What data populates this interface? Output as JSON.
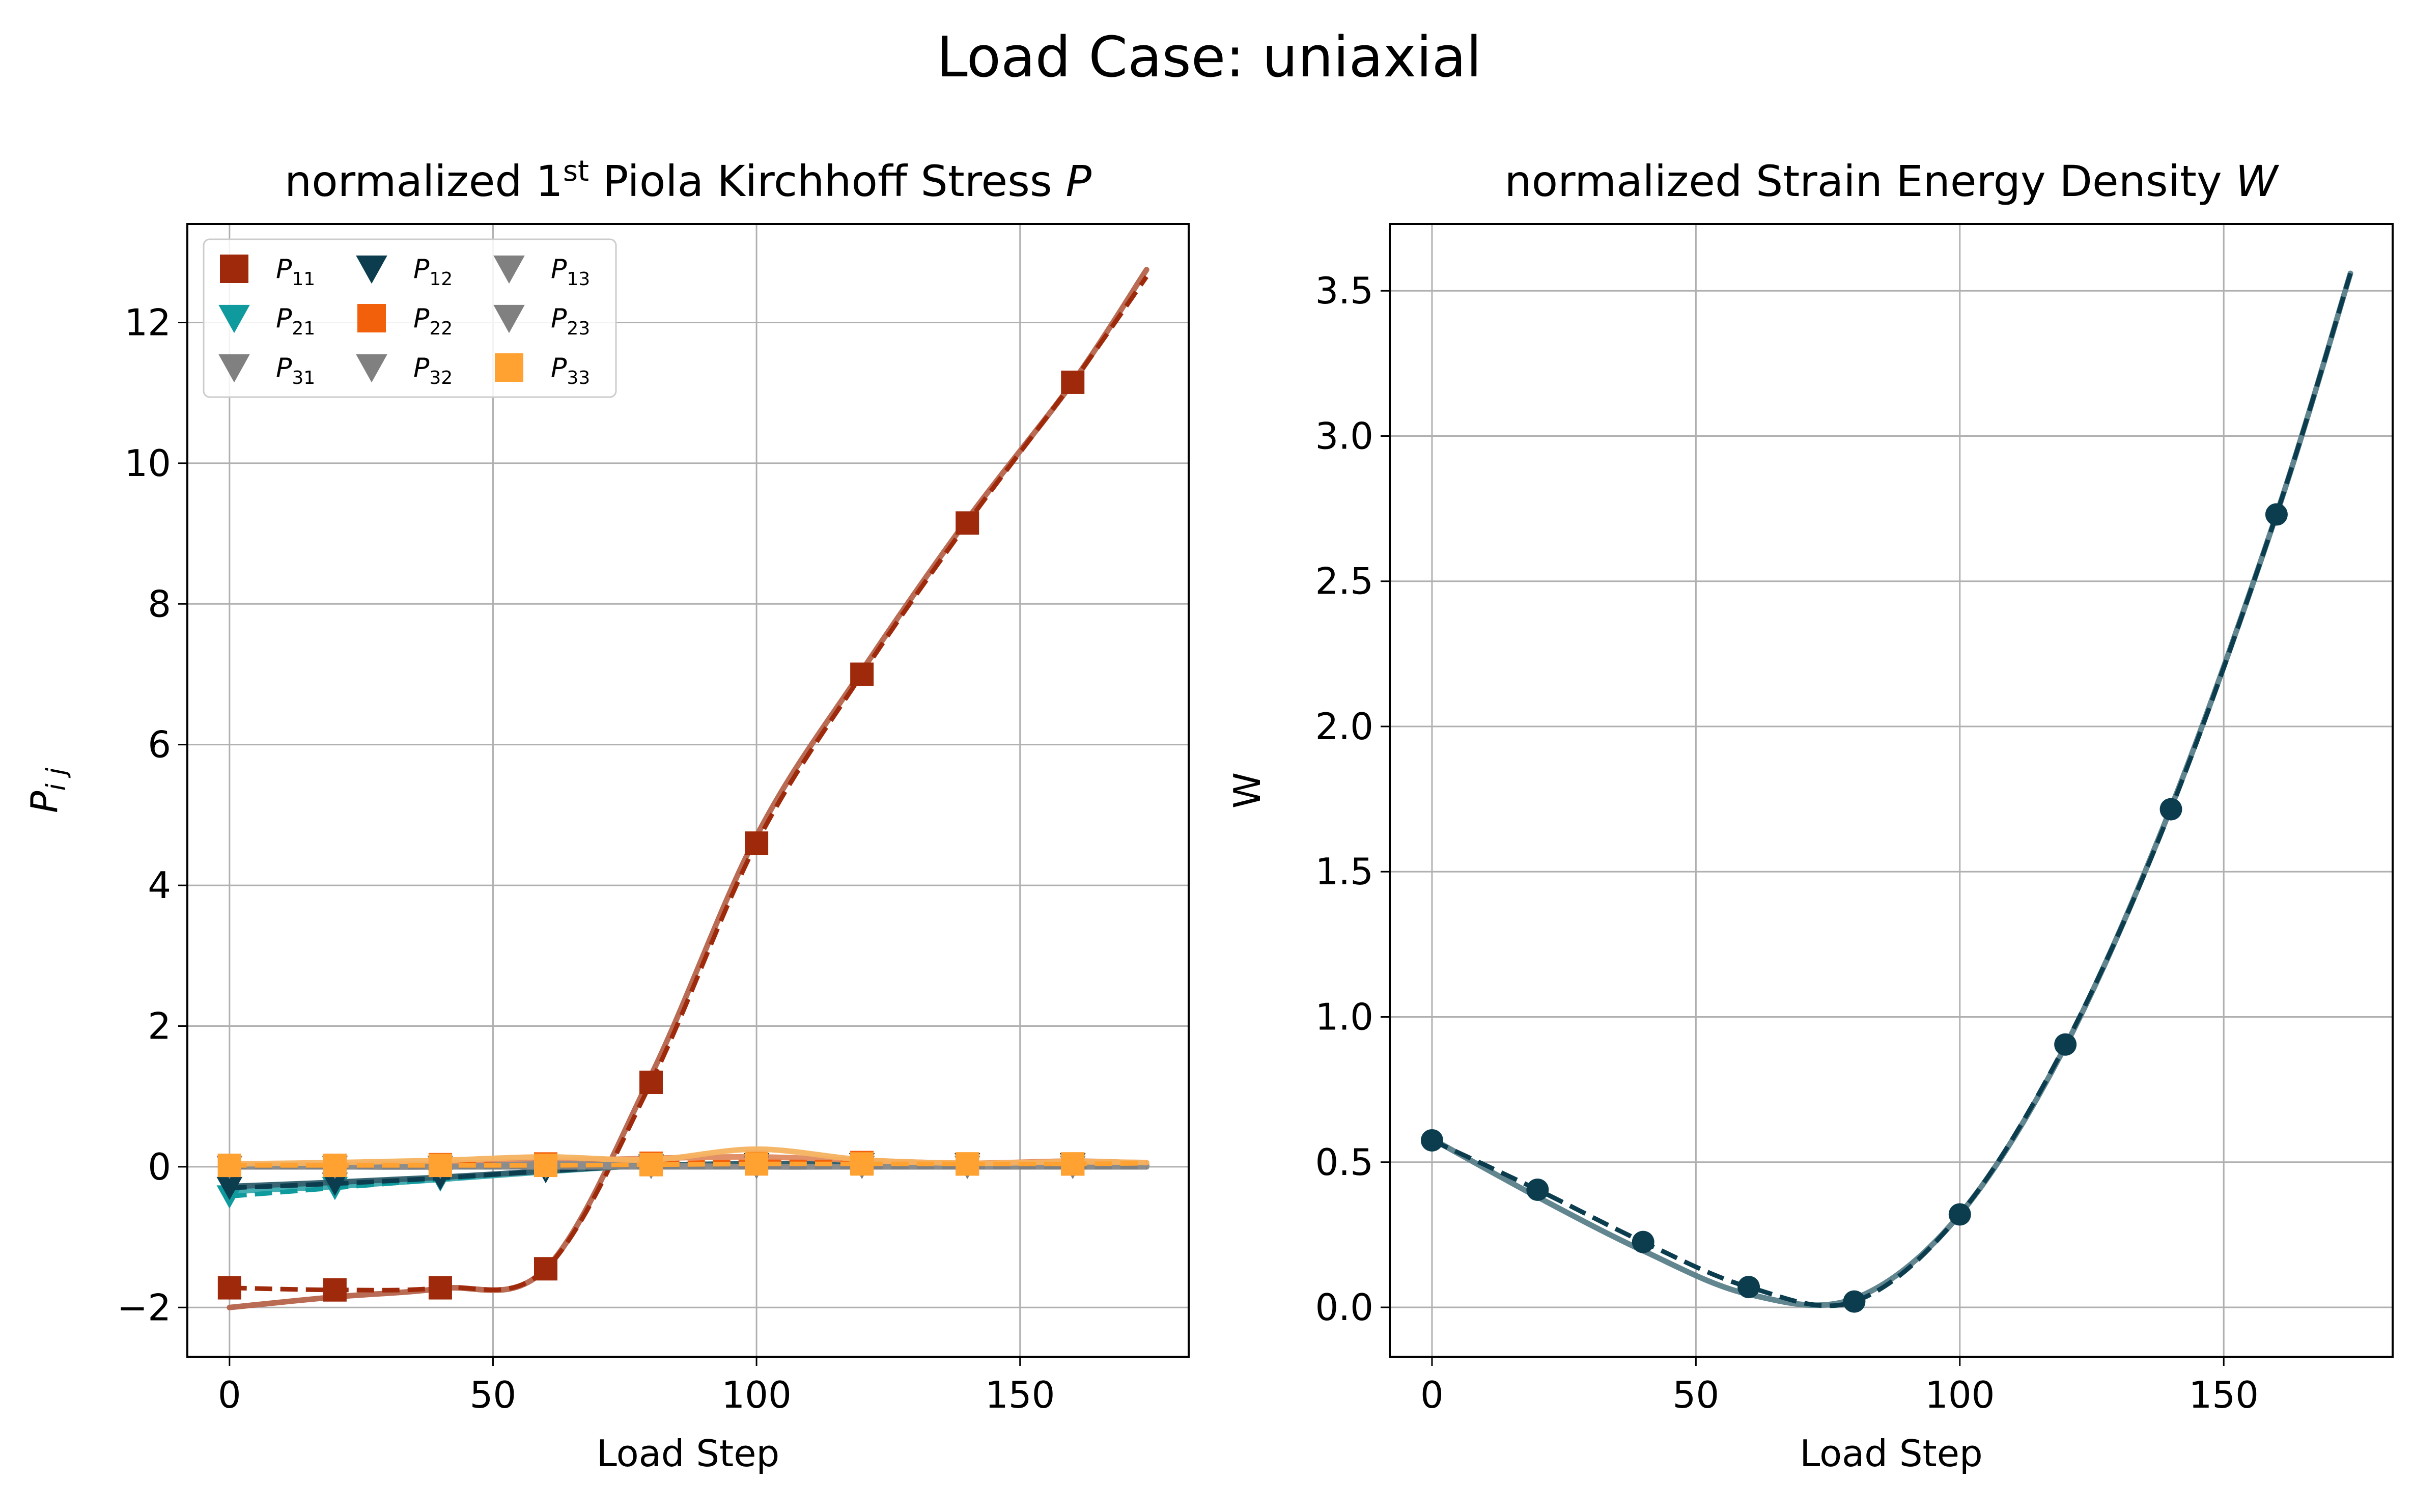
{
  "figure": {
    "suptitle": "Load Case: uniaxial"
  },
  "chart_data": [
    {
      "type": "line",
      "title_prefix": "normalized 1",
      "title_sup": "st",
      "title_suffix": " Piola Kirchhoff Stress ",
      "title_var": "P",
      "xlabel": "Load Step",
      "ylabel_main": "P",
      "ylabel_sub": "i j",
      "xlim": [
        -8,
        182
      ],
      "ylim": [
        -2.7,
        13.4
      ],
      "xticks": [
        0,
        50,
        100,
        150
      ],
      "yticks": [
        -2,
        0,
        2,
        4,
        6,
        8,
        10,
        12
      ],
      "ytick_labels": [
        "−2",
        "0",
        "2",
        "4",
        "6",
        "8",
        "10",
        "12"
      ],
      "grid": true,
      "legend_placement": "upper-left",
      "legend_columns": 3,
      "series": [
        {
          "id": "P11",
          "legend_main": "P",
          "legend_sub": "11",
          "color": "#9e2a0b",
          "fit_color": "#b5634a",
          "marker": "square",
          "x": [
            0,
            20,
            40,
            60,
            80,
            100,
            120,
            140,
            160,
            174
          ],
          "data": [
            -1.72,
            -1.75,
            -1.72,
            -1.45,
            1.2,
            4.6,
            7.0,
            9.15,
            11.15,
            12.65
          ],
          "fit": [
            -2.0,
            -1.85,
            -1.73,
            -1.45,
            1.3,
            4.7,
            7.05,
            9.2,
            11.15,
            12.75
          ]
        },
        {
          "id": "P21",
          "legend_main": "P",
          "legend_sub": "21",
          "color": "#0f9a9e",
          "fit_color": "#3aa9ad",
          "marker": "tri_down",
          "x": [
            0,
            20,
            40,
            60,
            80,
            100,
            120,
            140,
            160,
            174
          ],
          "data": [
            -0.42,
            -0.3,
            -0.18,
            -0.06,
            0.02,
            0.04,
            0.04,
            0.04,
            0.04,
            0.02
          ],
          "fit": [
            -0.35,
            -0.28,
            -0.18,
            -0.07,
            0.02,
            0.04,
            0.04,
            0.04,
            0.04,
            0.02
          ]
        },
        {
          "id": "P31",
          "legend_main": "P",
          "legend_sub": "31",
          "color": "#808080",
          "fit_color": "#8c8c8c",
          "marker": "tri_down",
          "x": [
            0,
            20,
            40,
            60,
            80,
            100,
            120,
            140,
            160,
            174
          ],
          "data": [
            0,
            0,
            0,
            0,
            0,
            0,
            0,
            0,
            0,
            0
          ],
          "fit": [
            0,
            0,
            0,
            0.03,
            0.02,
            0,
            0,
            0,
            0,
            0
          ]
        },
        {
          "id": "P12",
          "legend_main": "P",
          "legend_sub": "12",
          "color": "#0b3d4f",
          "fit_color": "#2f5e6c",
          "marker": "tri_down",
          "x": [
            0,
            20,
            40,
            60,
            80,
            100,
            120,
            140,
            160,
            174
          ],
          "data": [
            -0.3,
            -0.24,
            -0.16,
            -0.06,
            0.02,
            0.04,
            0.04,
            0.04,
            0.04,
            0.02
          ],
          "fit": [
            -0.28,
            -0.22,
            -0.15,
            -0.06,
            0.02,
            0.04,
            0.04,
            0.04,
            0.04,
            0.02
          ]
        },
        {
          "id": "P22",
          "legend_main": "P",
          "legend_sub": "22",
          "color": "#f2600c",
          "fit_color": "#e08a60",
          "marker": "square",
          "x": [
            0,
            20,
            40,
            60,
            80,
            100,
            120,
            140,
            160,
            174
          ],
          "data": [
            0.02,
            0.02,
            0.03,
            0.04,
            0.05,
            0.07,
            0.06,
            0.04,
            0.04,
            0.05
          ],
          "fit": [
            0.02,
            0.03,
            0.05,
            0.08,
            0.12,
            0.14,
            0.09,
            0.05,
            0.08,
            0.05
          ]
        },
        {
          "id": "P32",
          "legend_main": "P",
          "legend_sub": "32",
          "color": "#808080",
          "fit_color": "#8c8c8c",
          "marker": "tri_down",
          "x": [
            0,
            20,
            40,
            60,
            80,
            100,
            120,
            140,
            160,
            174
          ],
          "data": [
            0,
            0,
            0,
            0,
            0,
            0,
            0,
            0,
            0,
            0
          ],
          "fit": [
            0,
            0,
            0,
            0,
            0,
            0,
            0,
            0,
            0,
            0
          ]
        },
        {
          "id": "P13",
          "legend_main": "P",
          "legend_sub": "13",
          "color": "#808080",
          "fit_color": "#8c8c8c",
          "marker": "tri_down",
          "x": [
            0,
            20,
            40,
            60,
            80,
            100,
            120,
            140,
            160,
            174
          ],
          "data": [
            0,
            0,
            0,
            0,
            0,
            0,
            0,
            0,
            0,
            0
          ],
          "fit": [
            0,
            0,
            0,
            0.04,
            0.02,
            0,
            0,
            0,
            0,
            0
          ]
        },
        {
          "id": "P23",
          "legend_main": "P",
          "legend_sub": "23",
          "color": "#808080",
          "fit_color": "#8c8c8c",
          "marker": "tri_down",
          "x": [
            0,
            20,
            40,
            60,
            80,
            100,
            120,
            140,
            160,
            174
          ],
          "data": [
            0,
            0,
            0,
            0,
            0,
            0,
            0,
            0,
            0,
            0
          ],
          "fit": [
            0,
            0,
            0,
            0,
            0,
            0,
            0,
            0,
            0,
            0
          ]
        },
        {
          "id": "P33",
          "legend_main": "P",
          "legend_sub": "33",
          "color": "#ffa231",
          "fit_color": "#f6b260",
          "marker": "square",
          "x": [
            0,
            20,
            40,
            60,
            80,
            100,
            120,
            140,
            160,
            174
          ],
          "data": [
            0.02,
            0.02,
            0.02,
            0.02,
            0.03,
            0.04,
            0.04,
            0.04,
            0.04,
            0.05
          ],
          "fit": [
            0.04,
            0.06,
            0.09,
            0.14,
            0.1,
            0.25,
            0.1,
            0.05,
            0.07,
            0.06
          ]
        }
      ]
    },
    {
      "type": "line",
      "title_prefix": "normalized Strain Energy Density ",
      "title_var": "W",
      "xlabel": "Load Step",
      "ylabel": "W",
      "xlim": [
        -8,
        182
      ],
      "ylim": [
        -0.17,
        3.73
      ],
      "xticks": [
        0,
        50,
        100,
        150
      ],
      "yticks": [
        0,
        0.5,
        1,
        1.5,
        2,
        2.5,
        3,
        3.5
      ],
      "ytick_labels": [
        "0.0",
        "0.5",
        "1.0",
        "1.5",
        "2.0",
        "2.5",
        "3.0",
        "3.5"
      ],
      "grid": true,
      "series": [
        {
          "id": "W",
          "color": "#0b3d4f",
          "fit_color": "#5a7f89",
          "marker": "circle",
          "x": [
            0,
            20,
            40,
            60,
            80,
            100,
            120,
            140,
            160,
            174
          ],
          "data": [
            0.575,
            0.405,
            0.225,
            0.07,
            0.02,
            0.32,
            0.905,
            1.715,
            2.73,
            3.56
          ],
          "fit": [
            0.58,
            0.38,
            0.195,
            0.045,
            0.03,
            0.32,
            0.9,
            1.72,
            2.73,
            3.56
          ]
        }
      ]
    }
  ]
}
